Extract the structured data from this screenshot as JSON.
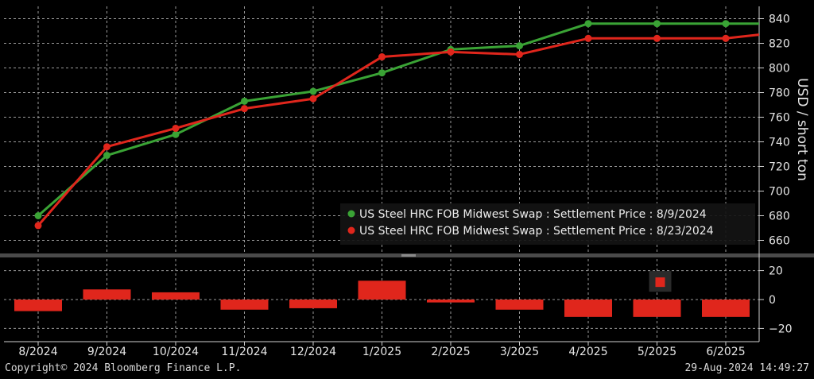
{
  "chart_data": {
    "type": "line",
    "categories": [
      "8/2024",
      "9/2024",
      "10/2024",
      "11/2024",
      "12/2024",
      "1/2025",
      "2/2025",
      "3/2025",
      "4/2025",
      "5/2025",
      "6/2025"
    ],
    "ylabel": "USD / short ton",
    "ylim": [
      650,
      850
    ],
    "yticks": [
      660,
      680,
      700,
      720,
      740,
      760,
      780,
      800,
      820,
      840
    ],
    "grid": true,
    "legend_position": "bottom-right",
    "series": [
      {
        "name": "US Steel HRC FOB Midwest Swap : Settlement Price : 8/9/2024",
        "color": "#3aa335",
        "values": [
          680,
          729,
          746,
          773,
          781,
          796,
          815,
          818,
          836,
          836,
          836
        ]
      },
      {
        "name": "US Steel HRC FOB Midwest Swap : Settlement Price : 8/23/2024",
        "color": "#e0261c",
        "values": [
          672,
          736,
          751,
          767,
          775,
          809,
          813,
          811,
          824,
          824,
          824
        ]
      }
    ],
    "difference_panel": {
      "type": "bar",
      "color": "#e0261c",
      "ylim": [
        -28,
        28
      ],
      "yticks": [
        20,
        0,
        -20
      ],
      "values": [
        -8,
        7,
        5,
        -7,
        -6,
        13,
        -2,
        -7,
        -12,
        -12,
        -12
      ],
      "highlight_value": 12
    }
  },
  "footer": {
    "copyright": "Copyright© 2024 Bloomberg Finance L.P.",
    "timestamp": "29-Aug-2024 14:49:27"
  }
}
